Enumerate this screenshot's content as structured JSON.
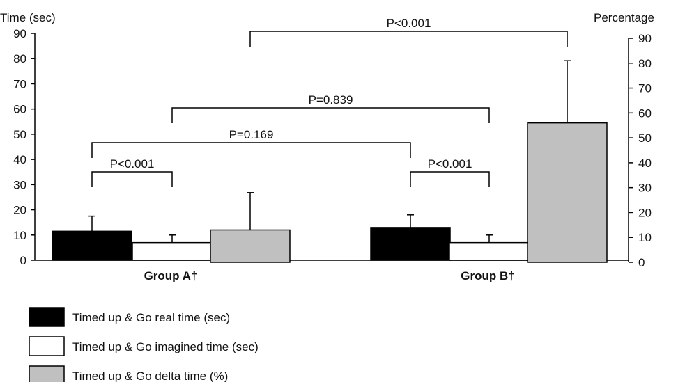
{
  "chart_data": {
    "type": "bar",
    "ylabel_left": "Time (sec)",
    "ylabel_right": "Percentage",
    "ylim_left": [
      0,
      90
    ],
    "ylim_right": [
      0,
      90
    ],
    "yticks_left": [
      0,
      10,
      20,
      30,
      40,
      50,
      60,
      70,
      80,
      90
    ],
    "yticks_right": [
      0,
      10,
      20,
      30,
      40,
      50,
      60,
      70,
      80,
      90
    ],
    "categories": [
      "Group A†",
      "Group B†"
    ],
    "series": [
      {
        "name": "Timed up & Go real time (sec)",
        "axis": "left",
        "color": "#000000",
        "values": [
          11.5,
          13
        ],
        "errors": [
          6,
          5
        ]
      },
      {
        "name": "Timed up & Go imagined time (sec)",
        "axis": "left",
        "color": "#ffffff",
        "values": [
          7,
          7
        ],
        "errors": [
          3,
          3
        ]
      },
      {
        "name": "Timed up & Go delta time (%)",
        "axis": "right",
        "color": "#c0c0c0",
        "values": [
          13,
          56
        ],
        "errors": [
          15,
          25
        ]
      }
    ],
    "grid": false,
    "legend": "bottom-left",
    "annotations": [
      {
        "label": "P<0.001",
        "from": {
          "group": 0,
          "series": 0
        },
        "to": {
          "group": 0,
          "series": 1
        }
      },
      {
        "label": "P=0.169",
        "from": {
          "group": 0,
          "series": 0
        },
        "to": {
          "group": 1,
          "series": 0
        }
      },
      {
        "label": "P=0.839",
        "from": {
          "group": 0,
          "series": 1
        },
        "to": {
          "group": 1,
          "series": 1
        }
      },
      {
        "label": "P<0.001",
        "from": {
          "group": 1,
          "series": 0
        },
        "to": {
          "group": 1,
          "series": 1
        }
      },
      {
        "label": "P<0.001",
        "from": {
          "group": 0,
          "series": 2
        },
        "to": {
          "group": 1,
          "series": 2
        }
      }
    ]
  }
}
